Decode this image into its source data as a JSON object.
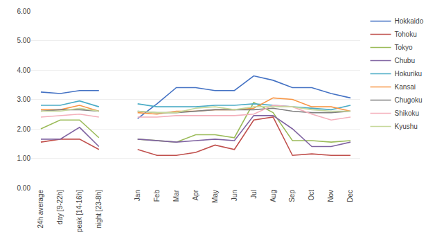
{
  "chart_data": {
    "type": "line",
    "categories": [
      "24h average",
      "day [9-22h]",
      "peak [14-16h]",
      "night [23-8h]",
      null,
      "Jan",
      "Feb",
      "Mar",
      "Apr",
      "May",
      "Jun",
      "Jul",
      "Aug",
      "Sep",
      "Oct",
      "Nov",
      "Dec"
    ],
    "series": [
      {
        "name": "Hokkaido",
        "color": "#4472C4",
        "values": [
          3.25,
          3.2,
          3.3,
          3.3,
          null,
          2.35,
          2.85,
          3.4,
          3.4,
          3.3,
          3.3,
          3.8,
          3.65,
          3.4,
          3.4,
          3.2,
          3.05
        ]
      },
      {
        "name": "Tohoku",
        "color": "#C0504D",
        "values": [
          1.55,
          1.65,
          1.65,
          1.3,
          null,
          1.3,
          1.1,
          1.1,
          1.2,
          1.45,
          1.3,
          2.3,
          2.4,
          1.1,
          1.15,
          1.1,
          1.1
        ]
      },
      {
        "name": "Tokyo",
        "color": "#9BBB59",
        "values": [
          2.0,
          2.3,
          2.3,
          1.7,
          null,
          1.65,
          1.6,
          1.55,
          1.8,
          1.8,
          1.7,
          2.9,
          2.55,
          1.6,
          1.6,
          1.55,
          1.6
        ]
      },
      {
        "name": "Chubu",
        "color": "#8064A2",
        "values": [
          1.65,
          1.65,
          2.05,
          1.4,
          null,
          1.65,
          1.6,
          1.55,
          1.6,
          1.65,
          1.6,
          2.45,
          2.45,
          2.0,
          1.4,
          1.4,
          1.55
        ]
      },
      {
        "name": "Hokuriku",
        "color": "#4BACC6",
        "values": [
          2.8,
          2.8,
          2.95,
          2.75,
          null,
          2.85,
          2.75,
          2.75,
          2.75,
          2.8,
          2.8,
          2.85,
          2.8,
          2.75,
          2.7,
          2.65,
          2.8
        ]
      },
      {
        "name": "Kansai",
        "color": "#F79646",
        "values": [
          2.65,
          2.65,
          2.8,
          2.6,
          null,
          2.55,
          2.5,
          2.6,
          2.6,
          2.65,
          2.65,
          2.7,
          3.05,
          3.0,
          2.75,
          2.75,
          2.6
        ]
      },
      {
        "name": "Chugoku",
        "color": "#808080",
        "values": [
          2.6,
          2.65,
          2.65,
          2.6,
          null,
          2.6,
          2.55,
          2.55,
          2.6,
          2.65,
          2.65,
          2.65,
          2.7,
          2.6,
          2.55,
          2.55,
          2.6
        ]
      },
      {
        "name": "Shikoku",
        "color": "#F4AFBB",
        "values": [
          2.4,
          2.45,
          2.5,
          2.4,
          null,
          2.4,
          2.4,
          2.45,
          2.45,
          2.45,
          2.45,
          2.5,
          2.8,
          2.75,
          2.5,
          2.3,
          2.4
        ]
      },
      {
        "name": "Kyushu",
        "color": "#C6D89A",
        "values": [
          2.6,
          2.6,
          2.7,
          2.6,
          null,
          2.6,
          2.55,
          2.55,
          2.7,
          2.75,
          2.65,
          2.75,
          2.75,
          2.75,
          2.65,
          2.6,
          2.6
        ]
      }
    ],
    "ylim": [
      0.0,
      6.0
    ],
    "yticks": [
      {
        "value": 0.0,
        "label": "0.00"
      },
      {
        "value": 1.0,
        "label": "1.00"
      },
      {
        "value": 2.0,
        "label": "2.00"
      },
      {
        "value": 3.0,
        "label": "3.00"
      },
      {
        "value": 4.0,
        "label": "4.00"
      },
      {
        "value": 5.0,
        "label": "5.00"
      },
      {
        "value": 6.0,
        "label": "6.00"
      }
    ],
    "grid": true
  }
}
